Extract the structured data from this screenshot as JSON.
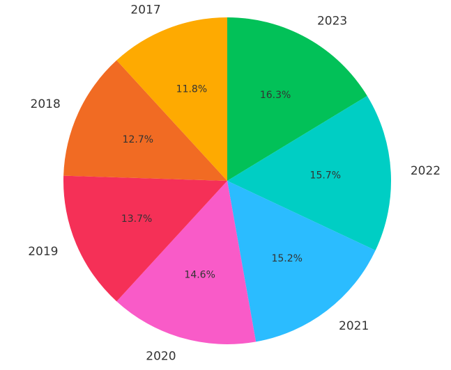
{
  "chart_data": {
    "type": "pie",
    "title": "",
    "start_angle_deg": 90,
    "direction": "clockwise",
    "legend": "none",
    "slices": [
      {
        "label": "2023",
        "value": 16.3,
        "pct_label": "16.3%",
        "color": "#02C158"
      },
      {
        "label": "2022",
        "value": 15.7,
        "pct_label": "15.7%",
        "color": "#00CEC4"
      },
      {
        "label": "2021",
        "value": 15.2,
        "pct_label": "15.2%",
        "color": "#2BBCFF"
      },
      {
        "label": "2020",
        "value": 14.6,
        "pct_label": "14.6%",
        "color": "#F95BC8"
      },
      {
        "label": "2019",
        "value": 13.7,
        "pct_label": "13.7%",
        "color": "#F53057"
      },
      {
        "label": "2018",
        "value": 12.7,
        "pct_label": "12.7%",
        "color": "#F16B23"
      },
      {
        "label": "2017",
        "value": 11.8,
        "pct_label": "11.8%",
        "color": "#FEAA01"
      }
    ]
  }
}
